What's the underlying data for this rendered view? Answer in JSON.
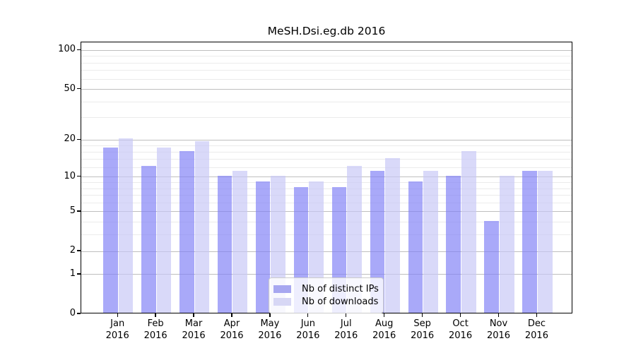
{
  "title": "MeSH.Dsi.eg.db 2016",
  "chart_data": {
    "type": "bar",
    "title": "MeSH.Dsi.eg.db 2016",
    "categories": [
      "Jan",
      "Feb",
      "Mar",
      "Apr",
      "May",
      "Jun",
      "Jul",
      "Aug",
      "Sep",
      "Oct",
      "Nov",
      "Dec"
    ],
    "category_year": "2016",
    "series": [
      {
        "name": "Nb of distinct IPs",
        "values": [
          17,
          12,
          16,
          10,
          9,
          8,
          8,
          11,
          9,
          10,
          4,
          11
        ],
        "fill": "rgba(127,127,246,0.67)",
        "legend_swatch": "#a7a7f0"
      },
      {
        "name": "Nb of downloads",
        "values": [
          20,
          17,
          19,
          11,
          10,
          9,
          12,
          14,
          11,
          16,
          10,
          11
        ],
        "fill": "rgba(198,198,246,0.67)",
        "legend_swatch": "#d7d7f5"
      }
    ],
    "xlabel": "",
    "ylabel": "",
    "y_scale": "log10(1+x)",
    "y_ticks": [
      0,
      1,
      2,
      5,
      10,
      20,
      50,
      100
    ],
    "y_minor_gridlines": [
      3,
      4,
      6,
      7,
      8,
      9,
      12,
      14,
      16,
      18,
      30,
      40,
      60,
      70,
      80,
      90
    ],
    "ylim": [
      0,
      116
    ],
    "grid": true,
    "legend_position": "inside-bottom-center"
  },
  "colors": {
    "background": "#ffffff",
    "axis": "#000000",
    "grid_major": "#bfbfbf",
    "grid_minor": "#ebebeb",
    "text": "#000000",
    "legend_bg": "rgba(255,255,255,0.8)",
    "legend_border": "#cccccc"
  }
}
